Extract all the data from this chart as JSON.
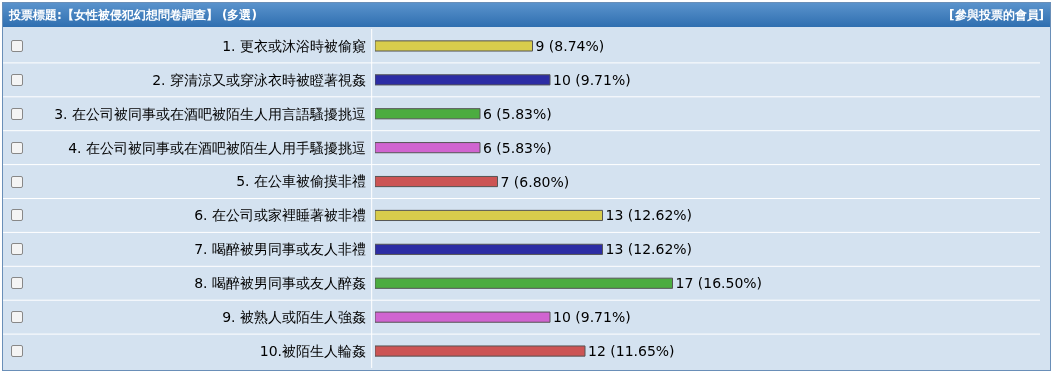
{
  "chart_data": {
    "type": "bar",
    "orientation": "horizontal",
    "title": "投票標題:【女性被侵犯幻想問卷調查】 (多選)",
    "annotations": [
      "[參與投票的會員]"
    ],
    "categories": [
      "1. 更衣或沐浴時被偷窺",
      "2. 穿清涼又或穿泳衣時被瞪著視姦",
      "3. 在公司被同事或在酒吧被陌生人用言語騷擾挑逗",
      "4. 在公司被同事或在酒吧被陌生人用手騷擾挑逗",
      "5. 在公車被偷摸非禮",
      "6. 在公司或家裡睡著被非禮",
      "7. 喝醉被男同事或友人非禮",
      "8. 喝醉被男同事或友人醉姦",
      "9. 被熟人或陌生人強姦",
      "10.被陌生人輪姦"
    ],
    "values": [
      9,
      10,
      6,
      6,
      7,
      13,
      13,
      17,
      10,
      12
    ],
    "value_labels": [
      "9 (8.74%)",
      "10 (9.71%)",
      "6 (5.83%)",
      "6 (5.83%)",
      "7 (6.80%)",
      "13 (12.62%)",
      "13 (12.62%)",
      "17 (16.50%)",
      "10 (9.71%)",
      "12 (11.65%)"
    ],
    "colors": [
      "#d8cc4c",
      "#2c2ca4",
      "#4cac40",
      "#d064d0",
      "#cc5454",
      "#d8cc4c",
      "#2c2ca4",
      "#4cac40",
      "#d064d0",
      "#cc5454"
    ],
    "xlim": [
      0,
      38
    ],
    "tick_labels": "y"
  }
}
